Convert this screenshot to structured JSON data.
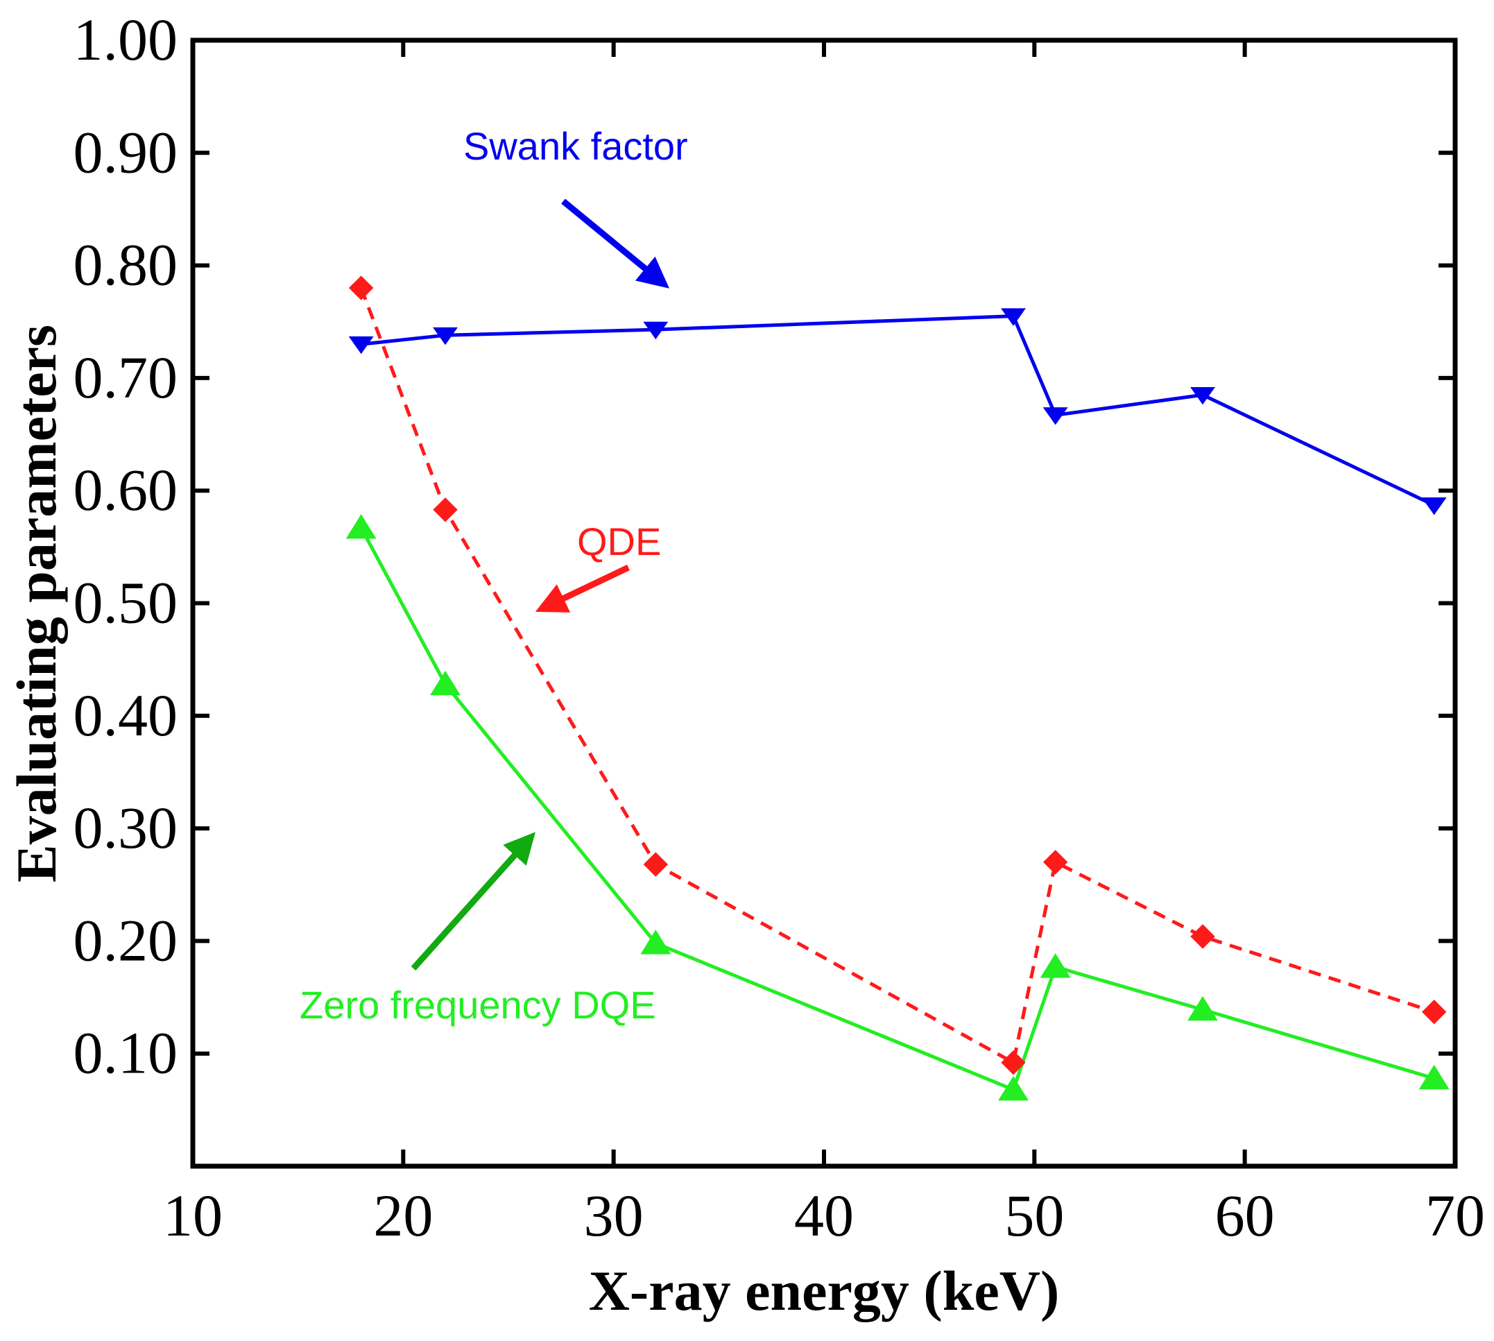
{
  "chart_data": {
    "type": "line",
    "title": "",
    "xlabel": "X-ray energy (keV)",
    "ylabel": "Evaluating parameters",
    "xlim": [
      10,
      70
    ],
    "ylim": [
      0.0,
      1.0
    ],
    "xticks": [
      "10",
      "20",
      "30",
      "40",
      "50",
      "60",
      "70"
    ],
    "yticks": [
      "0.10",
      "0.20",
      "0.30",
      "0.40",
      "0.50",
      "0.60",
      "0.70",
      "0.80",
      "0.90",
      "1.00"
    ],
    "x": [
      18,
      22,
      32,
      49,
      51,
      58,
      69
    ],
    "series": [
      {
        "name": "Swank factor",
        "color": "#0000ee",
        "marker": "triangle-down",
        "line": "solid",
        "values": [
          0.73,
          0.738,
          0.743,
          0.755,
          0.667,
          0.685,
          0.587
        ]
      },
      {
        "name": "QDE",
        "color": "#ff1a1a",
        "marker": "diamond",
        "line": "dashed",
        "values": [
          0.78,
          0.583,
          0.268,
          0.092,
          0.27,
          0.204,
          0.137
        ]
      },
      {
        "name": "Zero frequency DQE",
        "color": "#22ee22",
        "marker": "triangle-up",
        "line": "solid",
        "values": [
          0.567,
          0.428,
          0.198,
          0.068,
          0.177,
          0.139,
          0.078
        ]
      }
    ],
    "annotations": [
      {
        "text": "Swank factor",
        "color": "#0000ee",
        "arrow_color": "#0000ee"
      },
      {
        "text": "QDE",
        "color": "#ff1a1a",
        "arrow_color": "#ff1a1a"
      },
      {
        "text": "Zero frequency DQE",
        "color": "#22ee22",
        "arrow_color": "#11aa11"
      }
    ]
  }
}
